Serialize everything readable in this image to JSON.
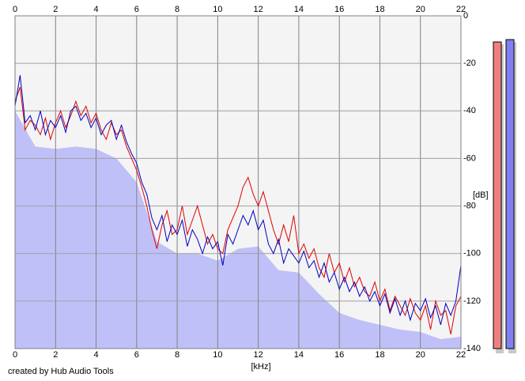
{
  "chart_data": {
    "type": "spectrum",
    "x_label": "[kHz]",
    "y_label": "[dB]",
    "credit": "created by Hub Audio Tools",
    "xlim": [
      0,
      22
    ],
    "ylim": [
      0,
      -140
    ],
    "xticks": [
      0,
      2,
      4,
      6,
      8,
      10,
      12,
      14,
      16,
      18,
      20,
      22
    ],
    "yticks": [
      0,
      -20,
      -40,
      -60,
      -80,
      -100,
      -120,
      -140
    ],
    "grid": true,
    "x": [
      0,
      0.25,
      0.5,
      0.75,
      1,
      1.25,
      1.5,
      1.75,
      2,
      2.25,
      2.5,
      2.75,
      3,
      3.25,
      3.5,
      3.75,
      4,
      4.25,
      4.5,
      4.75,
      5,
      5.25,
      5.5,
      5.75,
      6,
      6.25,
      6.5,
      6.75,
      7,
      7.25,
      7.5,
      7.75,
      8,
      8.25,
      8.5,
      8.75,
      9,
      9.25,
      9.5,
      9.75,
      10,
      10.25,
      10.5,
      10.75,
      11,
      11.25,
      11.5,
      11.75,
      12,
      12.25,
      12.5,
      12.75,
      13,
      13.25,
      13.5,
      13.75,
      14,
      14.25,
      14.5,
      14.75,
      15,
      15.25,
      15.5,
      15.75,
      16,
      16.25,
      16.5,
      16.75,
      17,
      17.25,
      17.5,
      17.75,
      18,
      18.25,
      18.5,
      18.75,
      19,
      19.25,
      19.5,
      19.75,
      20,
      20.25,
      20.5,
      20.75,
      21,
      21.25,
      21.5,
      21.75,
      22
    ],
    "area": {
      "color": "#c0c0f8",
      "x": [
        0,
        1,
        2,
        3,
        4,
        5,
        6,
        7,
        8,
        9,
        10,
        11,
        12,
        13,
        14,
        15,
        16,
        17,
        18,
        19,
        20,
        21,
        22
      ],
      "values": [
        -40,
        -55,
        -56,
        -55,
        -56,
        -60,
        -70,
        -95,
        -100,
        -100,
        -103,
        -98,
        -97,
        -107,
        -108,
        -117,
        -125,
        -128,
        -130,
        -132,
        -133,
        -136,
        -135
      ]
    },
    "series": [
      {
        "color": "#e00000",
        "values": [
          -36,
          -30,
          -48,
          -44,
          -46,
          -50,
          -43,
          -52,
          -45,
          -40,
          -47,
          -42,
          -36,
          -42,
          -38,
          -45,
          -41,
          -48,
          -52,
          -45,
          -50,
          -48,
          -55,
          -60,
          -65,
          -72,
          -80,
          -90,
          -98,
          -88,
          -82,
          -92,
          -90,
          -80,
          -92,
          -86,
          -80,
          -88,
          -96,
          -92,
          -98,
          -100,
          -90,
          -85,
          -80,
          -72,
          -68,
          -75,
          -80,
          -74,
          -82,
          -90,
          -96,
          -88,
          -95,
          -84,
          -100,
          -96,
          -102,
          -98,
          -106,
          -110,
          -100,
          -108,
          -104,
          -112,
          -106,
          -114,
          -110,
          -116,
          -118,
          -112,
          -120,
          -115,
          -124,
          -118,
          -122,
          -126,
          -119,
          -125,
          -128,
          -122,
          -132,
          -120,
          -126,
          -124,
          -134,
          -122,
          -118
        ]
      },
      {
        "color": "#0000c0",
        "values": [
          -38,
          -25,
          -45,
          -42,
          -48,
          -40,
          -50,
          -44,
          -47,
          -42,
          -49,
          -40,
          -38,
          -44,
          -41,
          -47,
          -43,
          -50,
          -46,
          -44,
          -52,
          -46,
          -53,
          -58,
          -62,
          -70,
          -75,
          -85,
          -90,
          -84,
          -95,
          -88,
          -92,
          -86,
          -97,
          -90,
          -94,
          -100,
          -93,
          -98,
          -95,
          -105,
          -92,
          -96,
          -90,
          -84,
          -88,
          -82,
          -90,
          -86,
          -96,
          -100,
          -94,
          -104,
          -98,
          -101,
          -104,
          -99,
          -106,
          -103,
          -110,
          -104,
          -112,
          -108,
          -115,
          -110,
          -116,
          -112,
          -118,
          -114,
          -120,
          -116,
          -122,
          -117,
          -125,
          -119,
          -126,
          -120,
          -128,
          -121,
          -124,
          -119,
          -127,
          -122,
          -130,
          -121,
          -126,
          -120,
          -105
        ]
      }
    ],
    "meters": [
      {
        "color": "#f08080",
        "value": -11
      },
      {
        "color": "#8080f0",
        "value": -10
      }
    ]
  }
}
